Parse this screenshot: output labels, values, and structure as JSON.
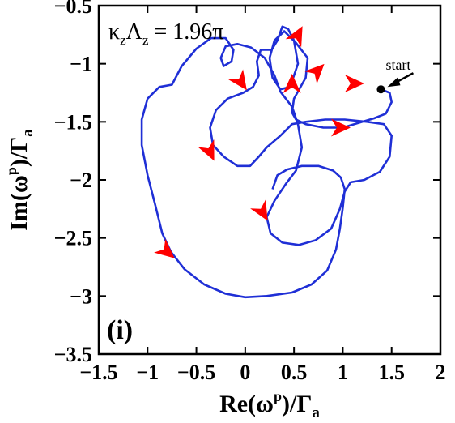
{
  "chart_data": {
    "type": "line",
    "title": "",
    "xlabel_main": "Re(ω",
    "xlabel_sup": "p",
    "xlabel_mid": ")/Γ",
    "xlabel_sub": "a",
    "ylabel_main": "Im(ω",
    "ylabel_sup": "p",
    "ylabel_mid": ")/Γ",
    "ylabel_sub": "a",
    "xlim": [
      -1.5,
      2
    ],
    "ylim": [
      -3.5,
      -0.5
    ],
    "xticks": [
      -1.5,
      -1,
      -0.5,
      0,
      0.5,
      1,
      1.5,
      2
    ],
    "xtick_labels": [
      "−1.5",
      "−1",
      "−0.5",
      "0",
      "0.5",
      "1",
      "1.5",
      "2"
    ],
    "yticks": [
      -3.5,
      -3,
      -2.5,
      -2,
      -1.5,
      -1,
      -0.5
    ],
    "ytick_labels": [
      "−3.5",
      "−3",
      "−2.5",
      "−2",
      "−1.5",
      "−1",
      "−0.5"
    ],
    "grid": false,
    "annotation": "κzΛz = 1.96π",
    "annotation_parts": {
      "k": "κ",
      "ksub": "z",
      "L": "Λ",
      "Lsub": "z",
      "rest": " = 1.96π"
    },
    "start_label": "start",
    "panel_label": "(i)",
    "line_color": "#1f2fd6",
    "arrow_color": "#ff0000",
    "start_point": [
      1.39,
      -1.22
    ],
    "series": [
      {
        "points": [
          [
            1.39,
            -1.22
          ],
          [
            1.48,
            -1.25
          ],
          [
            1.5,
            -1.33
          ],
          [
            1.44,
            -1.43
          ],
          [
            1.32,
            -1.47
          ],
          [
            1.2,
            -1.5
          ],
          [
            1.0,
            -1.55
          ],
          [
            0.8,
            -1.55
          ],
          [
            0.62,
            -1.52
          ],
          [
            0.52,
            -1.48
          ],
          [
            0.48,
            -1.42
          ],
          [
            0.5,
            -1.3
          ],
          [
            0.62,
            -1.12
          ],
          [
            0.64,
            -0.95
          ],
          [
            0.52,
            -0.82
          ],
          [
            0.4,
            -0.72
          ],
          [
            0.3,
            -0.8
          ],
          [
            0.25,
            -0.95
          ],
          [
            0.28,
            -1.12
          ],
          [
            0.36,
            -1.22
          ],
          [
            0.46,
            -1.2
          ],
          [
            0.54,
            -1.0
          ],
          [
            0.5,
            -0.8
          ],
          [
            0.44,
            -0.7
          ],
          [
            0.38,
            -0.68
          ],
          [
            0.33,
            -0.8
          ],
          [
            0.27,
            -0.88
          ],
          [
            0.16,
            -0.88
          ],
          [
            0.12,
            -0.98
          ],
          [
            0.14,
            -1.1
          ],
          [
            0.08,
            -1.2
          ],
          [
            -0.02,
            -1.25
          ],
          [
            -0.18,
            -1.3
          ],
          [
            -0.3,
            -1.4
          ],
          [
            -0.36,
            -1.55
          ],
          [
            -0.33,
            -1.7
          ],
          [
            -0.22,
            -1.8
          ],
          [
            -0.08,
            -1.88
          ],
          [
            0.05,
            -1.88
          ],
          [
            0.14,
            -1.8
          ],
          [
            0.22,
            -1.72
          ],
          [
            0.36,
            -1.62
          ],
          [
            0.48,
            -1.52
          ],
          [
            0.62,
            -1.5
          ],
          [
            0.82,
            -1.48
          ],
          [
            1.02,
            -1.48
          ],
          [
            1.25,
            -1.5
          ],
          [
            1.42,
            -1.52
          ],
          [
            1.5,
            -1.62
          ],
          [
            1.48,
            -1.8
          ],
          [
            1.38,
            -1.93
          ],
          [
            1.22,
            -2.0
          ],
          [
            1.08,
            -2.02
          ],
          [
            1.02,
            -2.1
          ],
          [
            0.97,
            -2.25
          ],
          [
            0.88,
            -2.42
          ],
          [
            0.72,
            -2.52
          ],
          [
            0.55,
            -2.56
          ],
          [
            0.38,
            -2.54
          ],
          [
            0.26,
            -2.46
          ],
          [
            0.22,
            -2.32
          ],
          [
            0.3,
            -2.18
          ],
          [
            0.42,
            -2.03
          ],
          [
            0.52,
            -1.92
          ],
          [
            0.58,
            -1.72
          ],
          [
            0.54,
            -1.52
          ],
          [
            0.48,
            -1.37
          ],
          [
            0.36,
            -1.24
          ],
          [
            0.3,
            -1.1
          ],
          [
            0.2,
            -0.95
          ],
          [
            0.06,
            -0.86
          ],
          [
            -0.08,
            -0.83
          ],
          [
            -0.2,
            -0.85
          ],
          [
            -0.25,
            -0.95
          ],
          [
            -0.22,
            -1.02
          ],
          [
            -0.14,
            -0.98
          ],
          [
            -0.12,
            -0.88
          ],
          [
            -0.2,
            -0.78
          ],
          [
            -0.35,
            -0.78
          ],
          [
            -0.5,
            -0.87
          ],
          [
            -0.65,
            -1.02
          ],
          [
            -0.75,
            -1.18
          ],
          [
            -0.88,
            -1.2
          ],
          [
            -1.0,
            -1.3
          ],
          [
            -1.06,
            -1.48
          ],
          [
            -1.06,
            -1.7
          ],
          [
            -1.0,
            -1.96
          ],
          [
            -0.92,
            -2.22
          ],
          [
            -0.85,
            -2.46
          ],
          [
            -0.76,
            -2.62
          ],
          [
            -0.62,
            -2.77
          ],
          [
            -0.42,
            -2.9
          ],
          [
            -0.2,
            -2.98
          ],
          [
            0.0,
            -3.01
          ],
          [
            0.22,
            -3.0
          ],
          [
            0.48,
            -2.97
          ],
          [
            0.68,
            -2.9
          ],
          [
            0.84,
            -2.78
          ],
          [
            0.93,
            -2.6
          ],
          [
            0.97,
            -2.42
          ],
          [
            1.0,
            -2.24
          ],
          [
            1.02,
            -2.08
          ],
          [
            0.98,
            -1.98
          ],
          [
            0.9,
            -1.92
          ],
          [
            0.75,
            -1.88
          ],
          [
            0.58,
            -1.88
          ],
          [
            0.43,
            -1.91
          ],
          [
            0.33,
            -1.96
          ],
          [
            0.28,
            -2.08
          ]
        ]
      }
    ],
    "arrows": [
      {
        "x": 0.54,
        "y": -0.75,
        "angle": 62
      },
      {
        "x": 1.12,
        "y": -1.17,
        "angle": 0
      },
      {
        "x": 0.48,
        "y": -1.17,
        "angle": 90
      },
      {
        "x": 0.74,
        "y": -1.06,
        "angle": 45
      },
      {
        "x": 0.98,
        "y": -1.55,
        "angle": 0
      },
      {
        "x": -0.04,
        "y": -1.16,
        "angle": -55
      },
      {
        "x": -0.36,
        "y": -1.76,
        "angle": -65
      },
      {
        "x": 0.18,
        "y": -2.28,
        "angle": -60
      },
      {
        "x": -0.8,
        "y": -2.62,
        "angle": -40
      }
    ]
  }
}
